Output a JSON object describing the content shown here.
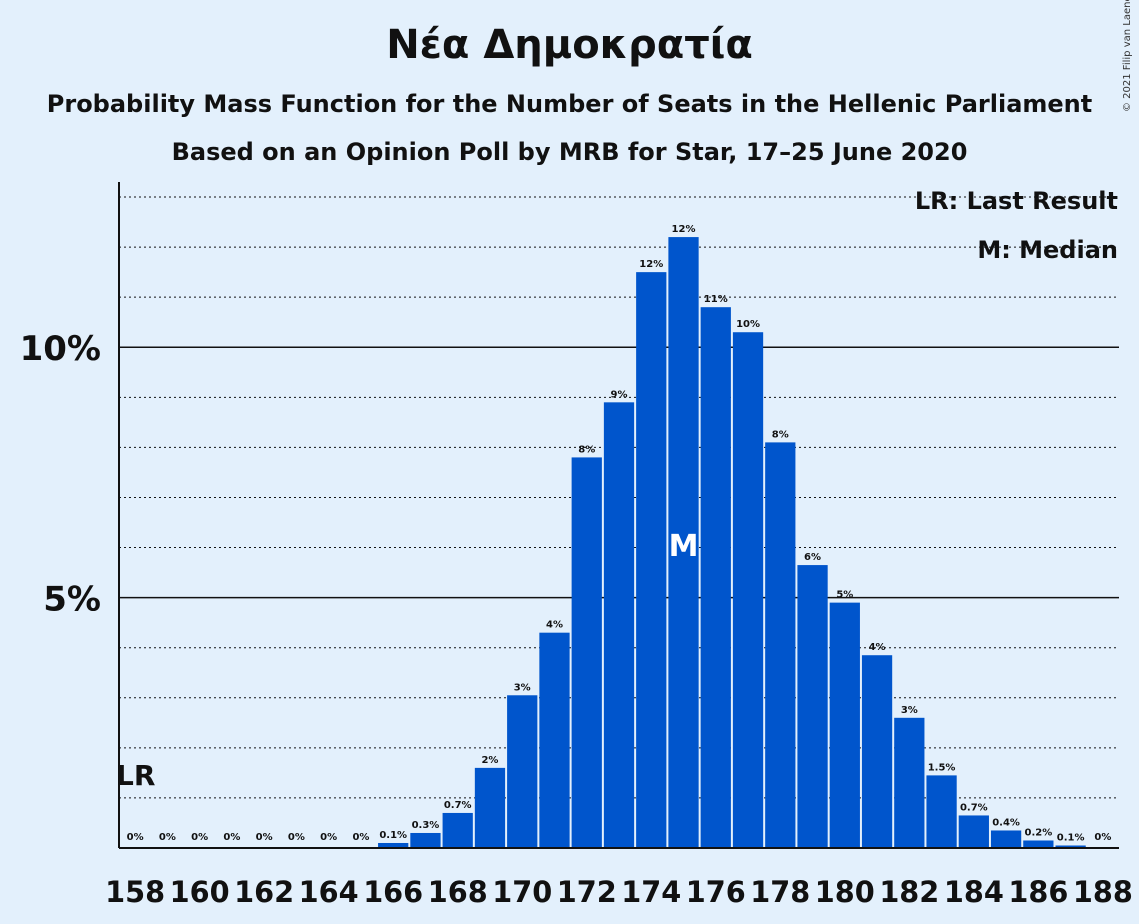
{
  "title": "Νέα Δημοκρατία",
  "subtitle": "Probability Mass Function for the Number of Seats in the Hellenic Parliament",
  "subtitle2": "Based on an Opinion Poll by MRB for Star, 17–25 June 2020",
  "copyright": "© 2021 Filip van Laenen",
  "legend": {
    "lr": "LR: Last Result",
    "median": "M: Median"
  },
  "markers": {
    "lr_label": "LR",
    "median_label": "M",
    "last_result_seat": 158,
    "median_seat": 175
  },
  "colors": {
    "bar": "#0055cc",
    "background": "#e3f0fc",
    "text": "#111111"
  },
  "chart_data": {
    "type": "bar",
    "x": [
      158,
      159,
      160,
      161,
      162,
      163,
      164,
      165,
      166,
      167,
      168,
      169,
      170,
      171,
      172,
      173,
      174,
      175,
      176,
      177,
      178,
      179,
      180,
      181,
      182,
      183,
      184,
      185,
      186,
      187,
      188
    ],
    "values": [
      0,
      0,
      0,
      0,
      0,
      0,
      0,
      0,
      0.1,
      0.3,
      0.7,
      1.6,
      3.05,
      4.3,
      7.8,
      8.9,
      11.5,
      12.2,
      10.8,
      10.3,
      8.1,
      5.65,
      4.9,
      3.85,
      2.6,
      1.45,
      0.65,
      0.35,
      0.15,
      0.05,
      0
    ],
    "data_labels": [
      "0%",
      "0%",
      "0%",
      "0%",
      "0%",
      "0%",
      "0%",
      "0%",
      "0.1%",
      "0.3%",
      "0.7%",
      "2%",
      "3%",
      "4%",
      "8%",
      "9%",
      "12%",
      "12%",
      "11%",
      "10%",
      "8%",
      "6%",
      "5%",
      "4%",
      "3%",
      "1.5%",
      "0.7%",
      "0.4%",
      "0.2%",
      "0.1%",
      "0%"
    ],
    "x_tick_labels": [
      "158",
      "160",
      "162",
      "164",
      "166",
      "168",
      "170",
      "172",
      "174",
      "176",
      "178",
      "180",
      "182",
      "184",
      "186",
      "188"
    ],
    "y_tick_labels": [
      "5%",
      "10%"
    ],
    "y_ticks": [
      5,
      10
    ],
    "ylim": [
      0,
      13.3
    ],
    "grid": true
  }
}
